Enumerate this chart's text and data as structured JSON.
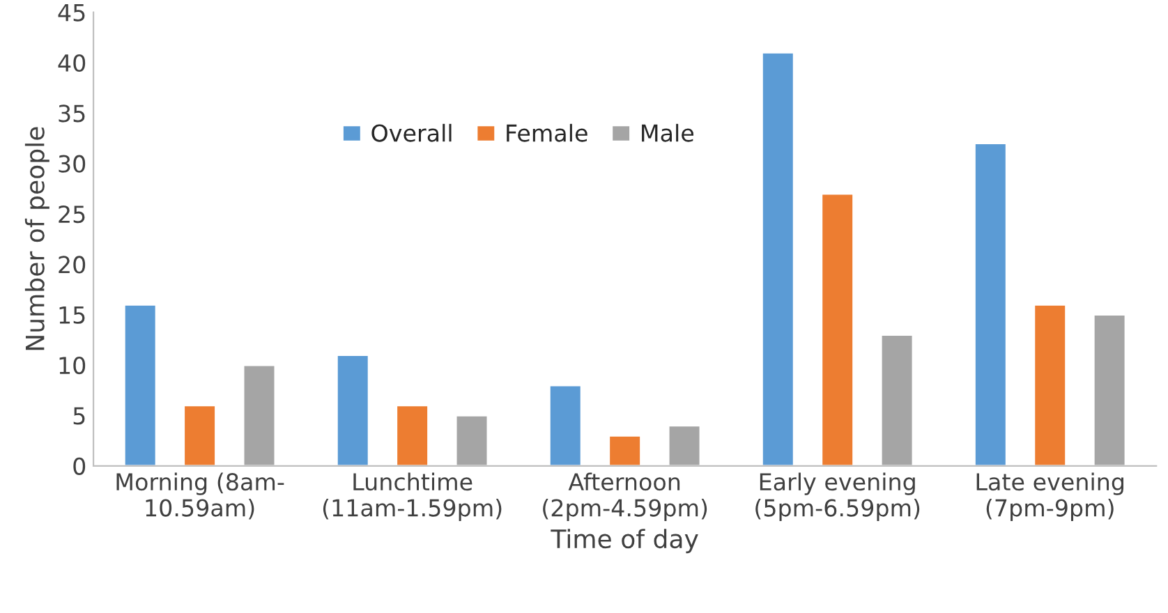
{
  "chart_data": {
    "type": "bar",
    "categories": [
      "Morning (8am-\n10.59am)",
      "Lunchtime\n(11am-1.59pm)",
      "Afternoon\n(2pm-4.59pm)",
      "Early evening\n(5pm-6.59pm)",
      "Late evening\n(7pm-9pm)"
    ],
    "series": [
      {
        "name": "Overall",
        "color": "#5b9bd5",
        "values": [
          16,
          11,
          8,
          41,
          32
        ]
      },
      {
        "name": "Female",
        "color": "#ed7d31",
        "values": [
          6,
          6,
          3,
          27,
          16
        ]
      },
      {
        "name": "Male",
        "color": "#a5a5a5",
        "values": [
          10,
          5,
          4,
          13,
          15
        ]
      }
    ],
    "xlabel": "Time of day",
    "ylabel": "Number of people",
    "ylim": [
      0,
      45
    ],
    "yticks": [
      0,
      5,
      10,
      15,
      20,
      25,
      30,
      35,
      40,
      45
    ],
    "legend": "top",
    "grid": false
  }
}
